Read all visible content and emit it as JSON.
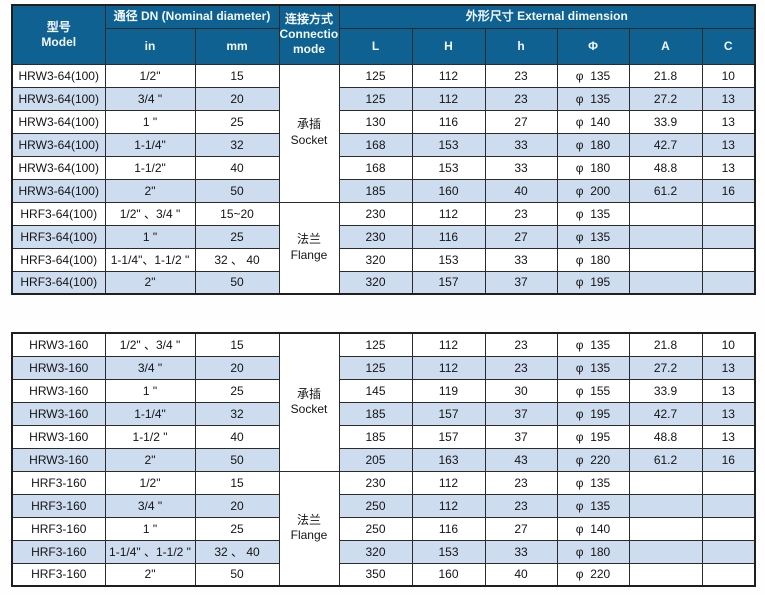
{
  "colors": {
    "header_bg": "#0e6190",
    "row_alt_bg": "#cddcee",
    "row_bg": "#ffffff",
    "border": "#2b2b2b",
    "header_text": "#f2f7fa",
    "cell_text": "#141414"
  },
  "header": {
    "model": [
      "型号",
      "Model"
    ],
    "dn": "通径 DN  (Nominal diameter)",
    "connection": [
      "连接方式",
      "Connection",
      "mode"
    ],
    "external": "外形尺寸  External dimension",
    "sub": [
      "in",
      "mm",
      "L",
      "H",
      "h",
      "Φ",
      "A",
      "C"
    ]
  },
  "tables": [
    {
      "groups": [
        {
          "connection": [
            "承插",
            "Socket"
          ],
          "rows": [
            [
              "HRW3-64(100)",
              "1/2\"",
              "15",
              "125",
              "112",
              "23",
              "φ  135",
              "21.8",
              "10"
            ],
            [
              "HRW3-64(100)",
              "3/4 \"",
              "20",
              "125",
              "112",
              "23",
              "φ  135",
              "27.2",
              "13"
            ],
            [
              "HRW3-64(100)",
              "1 \"",
              "25",
              "130",
              "116",
              "27",
              "φ  140",
              "33.9",
              "13"
            ],
            [
              "HRW3-64(100)",
              "1-1/4\"",
              "32",
              "168",
              "153",
              "33",
              "φ  180",
              "42.7",
              "13"
            ],
            [
              "HRW3-64(100)",
              "1-1/2\"",
              "40",
              "168",
              "153",
              "33",
              "φ  180",
              "48.8",
              "13"
            ],
            [
              "HRW3-64(100)",
              "2\"",
              "50",
              "185",
              "160",
              "40",
              "φ  200",
              "61.2",
              "16"
            ]
          ]
        },
        {
          "connection": [
            "法兰",
            "Flange"
          ],
          "rows": [
            [
              "HRF3-64(100)",
              "1/2\" 、3/4 \"",
              "15~20",
              "230",
              "112",
              "23",
              "φ  135",
              "",
              ""
            ],
            [
              "HRF3-64(100)",
              "1 \"",
              "25",
              "230",
              "116",
              "27",
              "φ  135",
              "",
              ""
            ],
            [
              "HRF3-64(100)",
              "1-1/4\"、1-1/2 \"",
              "32 、 40",
              "320",
              "153",
              "33",
              "φ  180",
              "",
              ""
            ],
            [
              "HRF3-64(100)",
              "2\"",
              "50",
              "320",
              "157",
              "37",
              "φ  195",
              "",
              ""
            ]
          ]
        }
      ]
    },
    {
      "groups": [
        {
          "connection": [
            "承插",
            "Socket"
          ],
          "rows": [
            [
              "HRW3-160",
              "1/2\" 、3/4 \"",
              "15",
              "125",
              "112",
              "23",
              "φ  135",
              "21.8",
              "10"
            ],
            [
              "HRW3-160",
              "3/4 \"",
              "20",
              "125",
              "112",
              "23",
              "φ  135",
              "27.2",
              "13"
            ],
            [
              "HRW3-160",
              "1 \"",
              "25",
              "145",
              "119",
              "30",
              "φ  155",
              "33.9",
              "13"
            ],
            [
              "HRW3-160",
              "1-1/4\"",
              "32",
              "185",
              "157",
              "37",
              "φ  195",
              "42.7",
              "13"
            ],
            [
              "HRW3-160",
              "1-1/2 \"",
              "40",
              "185",
              "157",
              "37",
              "φ  195",
              "48.8",
              "13"
            ],
            [
              "HRW3-160",
              "2\"",
              "50",
              "205",
              "163",
              "43",
              "φ  220",
              "61.2",
              "16"
            ]
          ]
        },
        {
          "connection": [
            "法兰",
            "Flange"
          ],
          "rows": [
            [
              "HRF3-160",
              "1/2\"",
              "15",
              "230",
              "112",
              "23",
              "φ  135",
              "",
              ""
            ],
            [
              "HRF3-160",
              "3/4 \"",
              "20",
              "250",
              "112",
              "23",
              "φ  135",
              "",
              ""
            ],
            [
              "HRF3-160",
              "1 \"",
              "25",
              "250",
              "116",
              "27",
              "φ  140",
              "",
              ""
            ],
            [
              "HRF3-160",
              "1-1/4\" 、1-1/2 \"",
              "32 、 40",
              "320",
              "153",
              "33",
              "φ  180",
              "",
              ""
            ],
            [
              "HRF3-160",
              "2\"",
              "50",
              "350",
              "160",
              "40",
              "φ  220",
              "",
              ""
            ]
          ]
        }
      ]
    }
  ]
}
